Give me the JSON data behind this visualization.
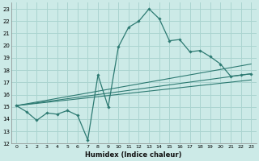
{
  "title": "",
  "xlabel": "Humidex (Indice chaleur)",
  "bg_color": "#cceae7",
  "grid_color": "#aad4d0",
  "line_color": "#2d7a72",
  "xlim": [
    -0.5,
    23.5
  ],
  "ylim": [
    12,
    23.5
  ],
  "yticks": [
    12,
    13,
    14,
    15,
    16,
    17,
    18,
    19,
    20,
    21,
    22,
    23
  ],
  "xticks": [
    0,
    1,
    2,
    3,
    4,
    5,
    6,
    7,
    8,
    9,
    10,
    11,
    12,
    13,
    14,
    15,
    16,
    17,
    18,
    19,
    20,
    21,
    22,
    23
  ],
  "main_x": [
    0,
    1,
    2,
    3,
    4,
    5,
    6,
    7,
    8,
    9,
    10,
    11,
    12,
    13,
    14,
    15,
    16,
    17,
    18,
    19,
    20,
    21,
    22,
    23
  ],
  "main_y": [
    15.1,
    14.6,
    13.9,
    14.5,
    14.4,
    14.7,
    14.3,
    12.3,
    17.6,
    15.0,
    19.9,
    21.5,
    22.0,
    23.0,
    22.2,
    20.4,
    20.5,
    19.5,
    19.6,
    19.1,
    18.5,
    17.5,
    17.6,
    17.7
  ],
  "line2_x": [
    0,
    23
  ],
  "line2_y": [
    15.1,
    18.5
  ],
  "line3_x": [
    0,
    23
  ],
  "line3_y": [
    15.1,
    17.2
  ],
  "line4_x": [
    0,
    23
  ],
  "line4_y": [
    15.1,
    17.7
  ]
}
